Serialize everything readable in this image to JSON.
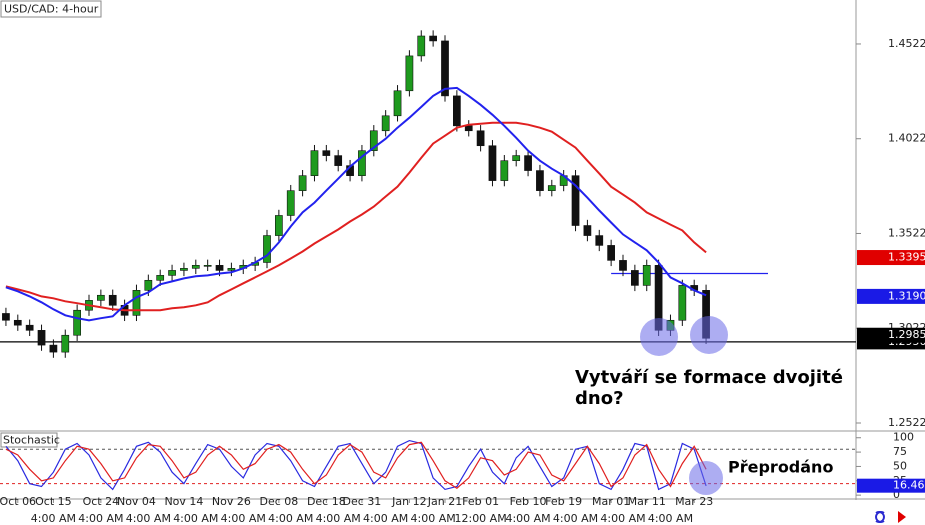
{
  "chart_data": {
    "type": "candlestick",
    "title": "USD/CAD: 4-hour",
    "categories": [
      null,
      "Oct 06",
      null,
      null,
      "Oct 15",
      null,
      null,
      null,
      "Oct 24",
      null,
      null,
      "Nov 04",
      null,
      null,
      null,
      "Nov 14",
      null,
      null,
      null,
      "Nov 26",
      null,
      null,
      null,
      "Dec 08",
      null,
      null,
      null,
      "Dec 18",
      null,
      null,
      "Dec 31",
      null,
      null,
      null,
      "Jan 12",
      null,
      null,
      "Jan 21",
      null,
      null,
      "Feb 01",
      null,
      null,
      null,
      "Feb 10",
      null,
      null,
      "Feb 19",
      null,
      null,
      null,
      "Mar 01",
      null,
      null,
      "Mar 11",
      null,
      null,
      null,
      "Mar 23",
      null
    ],
    "time_labels": [
      null,
      null,
      null,
      null,
      "4:00 AM",
      null,
      null,
      null,
      "4:00 AM",
      null,
      null,
      null,
      "4:00 AM",
      null,
      null,
      null,
      "4:00 AM",
      null,
      null,
      null,
      "4:00 AM",
      null,
      null,
      null,
      "4:00 AM",
      null,
      null,
      null,
      "4:00 AM",
      null,
      null,
      null,
      "4:00 AM",
      null,
      null,
      null,
      "4:00 AM",
      null,
      null,
      null,
      "12:00 AM",
      null,
      null,
      null,
      "4:00 AM",
      null,
      null,
      null,
      "4:00 AM",
      null,
      null,
      null,
      "4:00 AM",
      null,
      null,
      null,
      "4:00 AM",
      null,
      null,
      null
    ],
    "open": [
      1.31,
      1.3064,
      1.3038,
      1.3011,
      1.2933,
      1.2896,
      1.2985,
      1.3117,
      1.3169,
      1.3196,
      1.3143,
      1.309,
      1.3222,
      1.3275,
      1.3301,
      1.3327,
      1.3338,
      1.3354,
      1.3354,
      1.3327,
      1.3338,
      1.3354,
      1.3369,
      1.3511,
      1.3617,
      1.3748,
      1.3827,
      1.3959,
      1.3933,
      1.388,
      1.3827,
      1.3959,
      1.4064,
      1.4143,
      1.4275,
      1.4459,
      1.4564,
      1.4538,
      1.4248,
      1.409,
      1.4064,
      1.3985,
      1.3801,
      1.3906,
      1.3933,
      1.3854,
      1.3748,
      1.3775,
      1.3827,
      1.3564,
      1.3511,
      1.3459,
      1.338,
      1.3327,
      1.3248,
      1.3354,
      1.3011,
      1.3064,
      1.3248,
      1.3222
    ],
    "high": [
      1.313,
      1.3094,
      1.3068,
      1.3041,
      1.2963,
      1.3015,
      1.3147,
      1.3199,
      1.3226,
      1.3226,
      1.3173,
      1.3252,
      1.3305,
      1.3331,
      1.3357,
      1.3368,
      1.3384,
      1.3384,
      1.3384,
      1.3368,
      1.3384,
      1.3399,
      1.3541,
      1.3647,
      1.3778,
      1.3857,
      1.3989,
      1.3989,
      1.3963,
      1.391,
      1.3989,
      1.4094,
      1.4173,
      1.4305,
      1.4489,
      1.4594,
      1.4594,
      1.4568,
      1.4278,
      1.412,
      1.4094,
      1.4015,
      1.3936,
      1.3963,
      1.3963,
      1.3884,
      1.3805,
      1.3857,
      1.3857,
      1.3594,
      1.3541,
      1.3489,
      1.341,
      1.3357,
      1.3384,
      1.3384,
      1.3094,
      1.3278,
      1.3278,
      1.3252
    ],
    "low": [
      1.3034,
      1.3008,
      1.2981,
      1.2903,
      1.2866,
      1.2866,
      1.2955,
      1.3087,
      1.3139,
      1.3113,
      1.306,
      1.306,
      1.3192,
      1.3245,
      1.3271,
      1.3297,
      1.3308,
      1.3324,
      1.3297,
      1.3297,
      1.3308,
      1.3324,
      1.3339,
      1.3481,
      1.3587,
      1.3718,
      1.3797,
      1.3903,
      1.385,
      1.3797,
      1.3797,
      1.3929,
      1.4034,
      1.4113,
      1.4245,
      1.4429,
      1.4508,
      1.4218,
      1.406,
      1.4034,
      1.3955,
      1.3771,
      1.3771,
      1.3876,
      1.3824,
      1.3718,
      1.3718,
      1.3745,
      1.3534,
      1.3481,
      1.3429,
      1.335,
      1.3297,
      1.3218,
      1.3218,
      1.2981,
      1.2981,
      1.3034,
      1.3192,
      1.2939
    ],
    "close": [
      1.3064,
      1.3038,
      1.3011,
      1.2933,
      1.2896,
      1.2985,
      1.3117,
      1.3169,
      1.3196,
      1.3143,
      1.309,
      1.3222,
      1.3275,
      1.3301,
      1.3327,
      1.3338,
      1.3354,
      1.3354,
      1.3327,
      1.3338,
      1.3354,
      1.3369,
      1.3511,
      1.3617,
      1.3748,
      1.3827,
      1.3959,
      1.3933,
      1.388,
      1.3827,
      1.3959,
      1.4064,
      1.4143,
      1.4275,
      1.4459,
      1.4564,
      1.4538,
      1.4248,
      1.409,
      1.4064,
      1.3985,
      1.3801,
      1.3906,
      1.3933,
      1.3854,
      1.3748,
      1.3775,
      1.3827,
      1.3564,
      1.3511,
      1.3459,
      1.338,
      1.3327,
      1.3248,
      1.3354,
      1.3011,
      1.3064,
      1.3248,
      1.3222,
      1.2969
    ],
    "up_color": "#1e9a1e",
    "down_color": "#111111",
    "series": [
      {
        "color": "#e02020",
        "values": [
          1.3243,
          1.3227,
          1.3211,
          1.319,
          1.318,
          1.3164,
          1.3154,
          1.3143,
          1.3133,
          1.3122,
          1.3117,
          1.3117,
          1.3117,
          1.3117,
          1.3127,
          1.3133,
          1.3143,
          1.3159,
          1.3196,
          1.3227,
          1.3259,
          1.329,
          1.3322,
          1.3354,
          1.339,
          1.3427,
          1.3469,
          1.3506,
          1.3543,
          1.3585,
          1.3622,
          1.3664,
          1.3717,
          1.3769,
          1.3843,
          1.3922,
          1.3996,
          1.4038,
          1.408,
          1.4096,
          1.4101,
          1.4106,
          1.4106,
          1.4106,
          1.4096,
          1.408,
          1.4059,
          1.4017,
          1.3975,
          1.3906,
          1.3838,
          1.3769,
          1.3727,
          1.3685,
          1.3633,
          1.3601,
          1.3569,
          1.3538,
          1.3475,
          1.3422
        ]
      },
      {
        "color": "#2222ee",
        "values": [
          1.3238,
          1.3217,
          1.319,
          1.3159,
          1.3122,
          1.309,
          1.3075,
          1.3064,
          1.3075,
          1.3085,
          1.3143,
          1.3185,
          1.3211,
          1.3254,
          1.3269,
          1.3285,
          1.3296,
          1.3301,
          1.3311,
          1.3317,
          1.3338,
          1.3369,
          1.3406,
          1.3475,
          1.3559,
          1.3633,
          1.3685,
          1.3748,
          1.3811,
          1.3875,
          1.3927,
          1.3975,
          1.4022,
          1.408,
          1.4133,
          1.419,
          1.4248,
          1.4285,
          1.429,
          1.4248,
          1.4201,
          1.4148,
          1.409,
          1.4027,
          1.3959,
          1.3906,
          1.3864,
          1.3827,
          1.3775,
          1.3711,
          1.3643,
          1.358,
          1.3517,
          1.3475,
          1.3433,
          1.3369,
          1.329,
          1.3259,
          1.3222,
          1.3196
        ]
      }
    ],
    "ylim": [
      1.2485,
      1.4754
    ],
    "yticks": [
      1.2522,
      1.3022,
      1.3522,
      1.4022,
      1.4522
    ],
    "horizontal_lines": [
      {
        "value": 1.295,
        "color": "#000000"
      },
      {
        "value": 1.3311,
        "color": "#2222ee"
      }
    ],
    "price_tags": [
      {
        "value": 1.3395,
        "color": "#e00000"
      },
      {
        "value": {
          "value": 1.319,
          "label": "1.3190"
        },
        "color": "#1a1ae6"
      },
      {
        "value": {
          "value": 1.295,
          "label": "1.2950"
        },
        "color": "#000000"
      },
      {
        "value": 1.2985,
        "color": "#000000"
      }
    ],
    "annotation": [
      "Vytváří se formace dvojité",
      "dno?"
    ],
    "stochastic": {
      "title": "Stochastic",
      "ylim": [
        -5,
        110
      ],
      "yticks": [
        0,
        25,
        50,
        75,
        100
      ],
      "levels": [
        {
          "value": 80,
          "color": "#555555"
        },
        {
          "value": 20,
          "color": "#e02020"
        }
      ],
      "series": [
        {
          "color": "#2a2ae0",
          "values": [
            85,
            60,
            20,
            15,
            40,
            80,
            90,
            70,
            30,
            10,
            45,
            85,
            92,
            75,
            40,
            20,
            55,
            88,
            80,
            50,
            30,
            70,
            90,
            85,
            60,
            25,
            15,
            50,
            85,
            90,
            55,
            20,
            40,
            85,
            95,
            90,
            30,
            10,
            15,
            50,
            80,
            40,
            20,
            65,
            85,
            50,
            15,
            30,
            80,
            85,
            20,
            10,
            45,
            90,
            85,
            10,
            20,
            90,
            80,
            16
          ]
        },
        {
          "color": "#e02020",
          "values": [
            80,
            70,
            45,
            25,
            30,
            60,
            85,
            80,
            55,
            25,
            30,
            65,
            88,
            85,
            60,
            30,
            40,
            70,
            85,
            70,
            45,
            55,
            80,
            88,
            75,
            45,
            20,
            35,
            70,
            88,
            75,
            40,
            30,
            65,
            88,
            92,
            60,
            25,
            12,
            30,
            65,
            60,
            35,
            45,
            75,
            70,
            35,
            25,
            55,
            85,
            55,
            15,
            30,
            70,
            88,
            45,
            15,
            55,
            85,
            45
          ]
        }
      ],
      "tag": {
        "value": 16.46,
        "color": "#1a1ae6"
      },
      "annotation": "Přeprodáno"
    }
  }
}
